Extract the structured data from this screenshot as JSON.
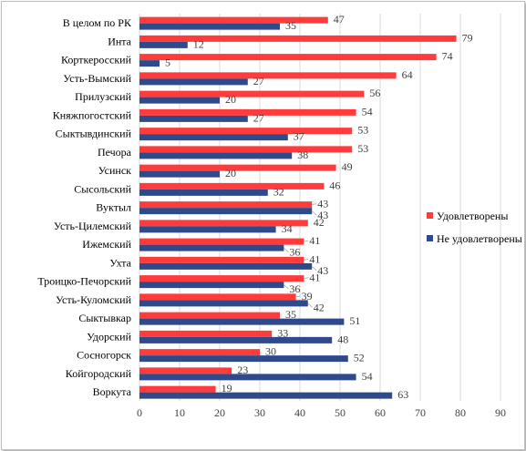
{
  "chart_data": {
    "type": "bar",
    "orientation": "horizontal",
    "categories": [
      "В целом по РК",
      "Инта",
      "Корткеросский",
      "Усть-Вымский",
      "Прилузский",
      "Княжпогостский",
      "Сыктывдинский",
      "Печора",
      "Усинск",
      "Сысольский",
      "Вуктыл",
      "Усть-Цилемский",
      "Ижемский",
      "Ухта",
      "Троицко-Печорский",
      "Усть-Куломский",
      "Сыктывкар",
      "Удорский",
      "Сосногорск",
      "Койгородский",
      "Воркута"
    ],
    "series": [
      {
        "name": "Удовлетворены",
        "color": "#ff3b3b",
        "values": [
          47,
          79,
          74,
          64,
          56,
          54,
          53,
          53,
          49,
          46,
          43,
          42,
          41,
          41,
          41,
          39,
          35,
          33,
          30,
          23,
          19
        ]
      },
      {
        "name": "Не удовлетворены",
        "color": "#2e4a8a",
        "values": [
          35,
          12,
          5,
          27,
          20,
          27,
          37,
          38,
          20,
          32,
          43,
          34,
          36,
          43,
          36,
          42,
          51,
          48,
          52,
          54,
          63
        ]
      }
    ],
    "xlim": [
      0,
      90
    ],
    "xticks": [
      0,
      10,
      20,
      30,
      40,
      50,
      60,
      70,
      80,
      90
    ],
    "grid": "vertical",
    "legend_position": "right",
    "data_labels": true
  }
}
